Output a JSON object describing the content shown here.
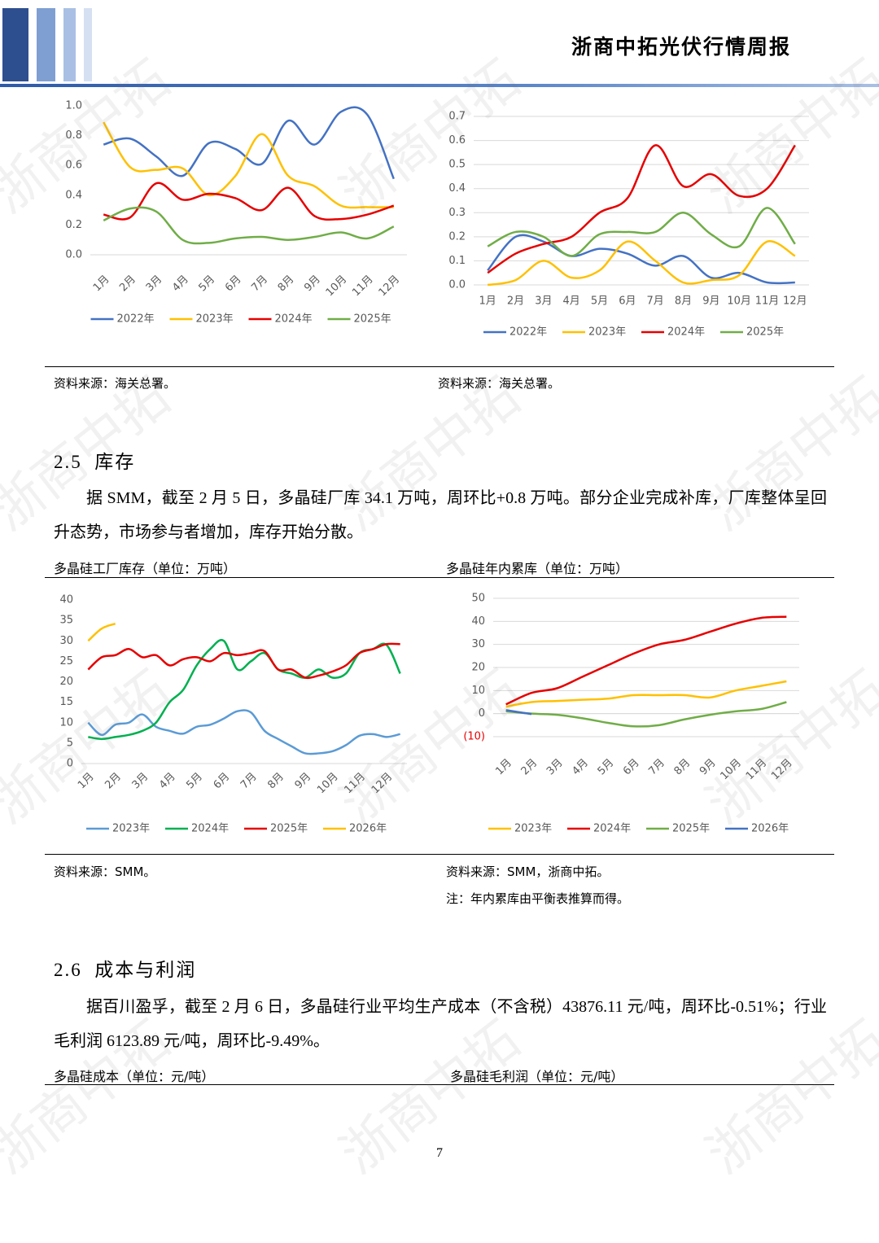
{
  "header": {
    "title": "浙商中拓光伏行情周报"
  },
  "watermark": "浙商中拓",
  "chart_data": [
    {
      "type": "line",
      "categories": [
        "1月",
        "2月",
        "3月",
        "4月",
        "5月",
        "6月",
        "7月",
        "8月",
        "9月",
        "10月",
        "11月",
        "12月"
      ],
      "series": [
        {
          "name": "2022年",
          "color": "#4472c4",
          "values": [
            0.74,
            0.78,
            0.66,
            0.53,
            0.75,
            0.71,
            0.61,
            0.9,
            0.74,
            0.96,
            0.94,
            0.51
          ]
        },
        {
          "name": "2023年",
          "color": "#ffc000",
          "values": [
            0.89,
            0.59,
            0.57,
            0.58,
            0.4,
            0.53,
            0.81,
            0.53,
            0.46,
            0.33,
            0.32,
            0.32
          ]
        },
        {
          "name": "2024年",
          "color": "#e60000",
          "values": [
            0.27,
            0.25,
            0.48,
            0.37,
            0.41,
            0.38,
            0.3,
            0.45,
            0.26,
            0.24,
            0.27,
            0.33
          ]
        },
        {
          "name": "2025年",
          "color": "#70ad47",
          "values": [
            0.23,
            0.31,
            0.29,
            0.1,
            0.08,
            0.11,
            0.12,
            0.1,
            0.12,
            0.15,
            0.11,
            0.19
          ]
        }
      ],
      "ylim": [
        0,
        1
      ],
      "yticks": [
        {
          "value": 0,
          "label": "0.0"
        },
        0.2,
        0.4,
        0.6,
        0.8,
        {
          "value": 1,
          "label": "1.0"
        }
      ],
      "grid": false,
      "legend": "bottom"
    },
    {
      "type": "line",
      "categories": [
        "1月",
        "2月",
        "3月",
        "4月",
        "5月",
        "6月",
        "7月",
        "8月",
        "9月",
        "10月",
        "11月",
        "12月"
      ],
      "series": [
        {
          "name": "2022年",
          "color": "#4472c4",
          "values": [
            0.06,
            0.2,
            0.18,
            0.12,
            0.15,
            0.13,
            0.08,
            0.12,
            0.03,
            0.05,
            0.01,
            0.01
          ]
        },
        {
          "name": "2023年",
          "color": "#ffc000",
          "values": [
            0.0,
            0.02,
            0.1,
            0.03,
            0.06,
            0.18,
            0.1,
            0.01,
            0.02,
            0.04,
            0.18,
            0.12
          ]
        },
        {
          "name": "2024年",
          "color": "#e60000",
          "values": [
            0.05,
            0.13,
            0.17,
            0.2,
            0.3,
            0.36,
            0.58,
            0.41,
            0.46,
            0.37,
            0.4,
            0.58
          ]
        },
        {
          "name": "2025年",
          "color": "#70ad47",
          "values": [
            0.16,
            0.22,
            0.2,
            0.12,
            0.21,
            0.22,
            0.22,
            0.3,
            0.21,
            0.16,
            0.32,
            0.17
          ]
        }
      ],
      "ylim": [
        0,
        0.7
      ],
      "yticks": [
        {
          "value": 0,
          "label": "0.0"
        },
        0.1,
        0.2,
        0.3,
        0.4,
        0.5,
        0.6,
        0.7
      ],
      "grid": true,
      "legend": "bottom"
    },
    {
      "type": "line",
      "title": "多晶硅工厂库存（单位：万吨）",
      "categories": [
        "1月",
        null,
        "2月",
        null,
        "3月",
        null,
        "4月",
        null,
        "5月",
        null,
        "6月",
        null,
        "7月",
        null,
        "8月",
        null,
        "9月",
        null,
        "10月",
        null,
        "11月",
        null,
        "12月",
        null
      ],
      "series": [
        {
          "name": "2023年",
          "color": "#5b9bd5",
          "values": [
            10,
            7,
            9.5,
            10,
            12,
            9,
            8,
            7.3,
            9,
            9.5,
            11,
            12.8,
            12.5,
            8,
            6,
            4.2,
            2.5,
            2.5,
            3,
            4.5,
            6.8,
            7.2,
            6.5,
            7.2
          ]
        },
        {
          "name": "2024年",
          "color": "#00b050",
          "values": [
            6.5,
            6,
            6.5,
            7,
            8,
            10,
            15,
            18,
            24,
            28,
            30,
            23,
            25,
            27,
            23,
            22,
            21,
            23,
            21,
            22,
            27,
            28,
            29,
            22
          ]
        },
        {
          "name": "2025年",
          "color": "#e60000",
          "values": [
            23,
            26,
            26.5,
            28,
            26,
            26.5,
            24,
            25.5,
            26,
            25,
            27,
            26.5,
            27,
            27.5,
            23,
            23,
            21,
            21.5,
            22.5,
            24,
            27,
            28,
            29.2,
            29.2
          ]
        },
        {
          "name": "2026年",
          "color": "#ffc000",
          "values": [
            30,
            33,
            34.2,
            null,
            null,
            null,
            null,
            null,
            null,
            null,
            null,
            null,
            null,
            null,
            null,
            null,
            null,
            null,
            null,
            null,
            null,
            null,
            null,
            null
          ]
        }
      ],
      "ylim": [
        0,
        40
      ],
      "yticks": [
        0,
        5,
        10,
        15,
        20,
        25,
        30,
        35,
        40
      ],
      "grid": false,
      "legend": "bottom"
    },
    {
      "type": "line",
      "title": "多晶硅年内累库（单位：万吨）",
      "categories": [
        "1月",
        "2月",
        "3月",
        "4月",
        "5月",
        "6月",
        "7月",
        "8月",
        "9月",
        "10月",
        "11月",
        "12月"
      ],
      "series": [
        {
          "name": "2023年",
          "color": "#ffc000",
          "values": [
            3,
            5,
            5.5,
            6,
            6.5,
            8,
            8,
            8,
            7,
            10,
            12,
            14
          ]
        },
        {
          "name": "2024年",
          "color": "#e60000",
          "values": [
            4,
            9,
            11,
            16,
            21,
            26,
            30,
            32,
            35.5,
            39,
            41.5,
            42
          ]
        },
        {
          "name": "2025年",
          "color": "#70ad47",
          "values": [
            1,
            0,
            -0.5,
            -2,
            -4,
            -5.5,
            -5,
            -2.5,
            -0.5,
            1,
            2,
            5
          ]
        },
        {
          "name": "2026年",
          "color": "#4472c4",
          "values": [
            1.5,
            -0.2,
            null,
            null,
            null,
            null,
            null,
            null,
            null,
            null,
            null,
            null
          ]
        }
      ],
      "ylim": [
        -10,
        50
      ],
      "yticks": [
        {
          "value": -10,
          "label": "(10)"
        },
        0,
        10,
        20,
        30,
        40,
        50
      ],
      "grid": true,
      "legend": "bottom"
    }
  ],
  "sources": [
    "资料来源：海关总署。",
    "资料来源：海关总署。",
    "资料来源：SMM。",
    "资料来源：SMM，浙商中拓。"
  ],
  "note": "注：年内累库由平衡表推算而得。",
  "sections": [
    {
      "heading": "2.5  库存",
      "paragraph": "据 SMM，截至 2 月 5 日，多晶硅厂库 34.1 万吨，周环比+0.8 万吨。部分企业完成补库，厂库整体呈回升态势，市场参与者增加，库存开始分散。"
    },
    {
      "heading": "2.6  成本与利润",
      "paragraph": "据百川盈孚，截至 2 月 6 日，多晶硅行业平均生产成本（不含税）43876.11 元/吨，周环比-0.51%；行业毛利润 6123.89 元/吨，周环比-9.49%。",
      "captions": [
        "多晶硅成本（单位：元/吨）",
        "多晶硅毛利润（单位：元/吨）"
      ]
    }
  ],
  "page_number": "7"
}
